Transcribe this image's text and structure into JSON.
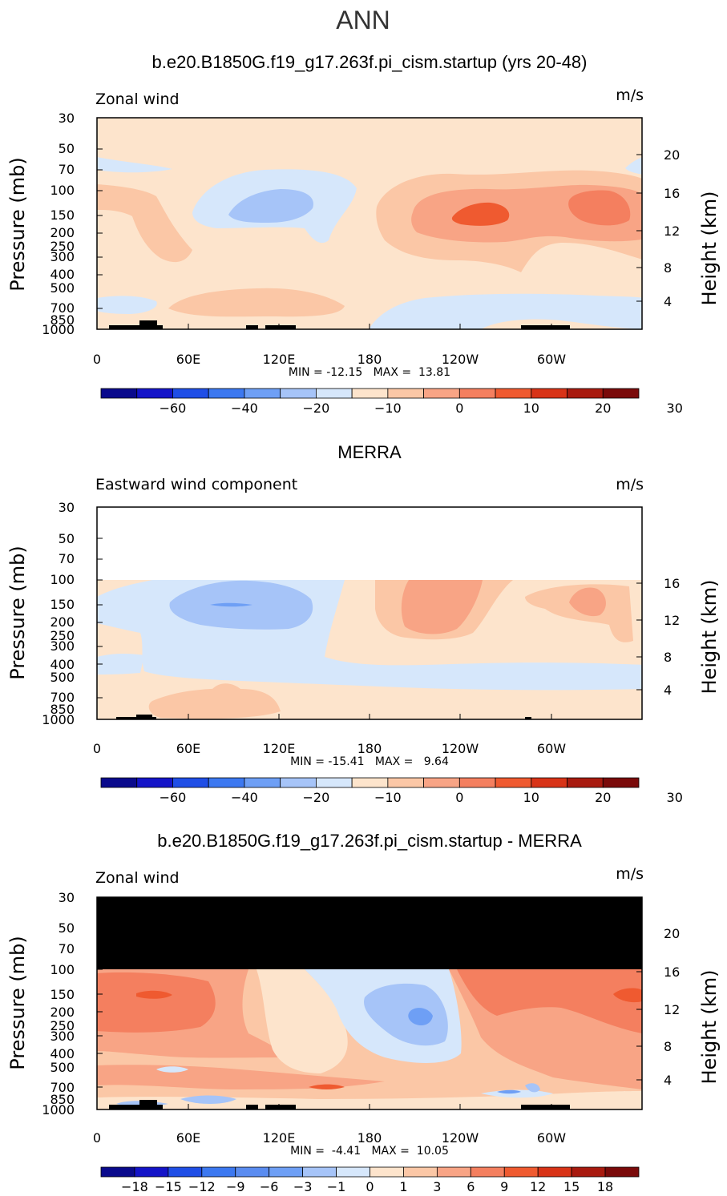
{
  "main_title": "ANN",
  "chart_data": [
    {
      "type": "contour",
      "title": "b.e20.B1850G.f19_g17.263f.pi_cism.startup (yrs 20-48)",
      "left_label": "Zonal wind",
      "units": "m/s",
      "ylabel": "Pressure (mb)",
      "y2label": "Height (km)",
      "xticks": [
        "0",
        "60E",
        "120E",
        "180",
        "120W",
        "60W"
      ],
      "yticks": [
        "30",
        "50",
        "70",
        "100",
        "150",
        "200",
        "250",
        "300",
        "400",
        "500",
        "700",
        "850",
        "1000"
      ],
      "y2ticks": [
        "20",
        "16",
        "12",
        "8",
        "4"
      ],
      "stats": "MIN = -12.15   MAX =  13.81",
      "min": -12.15,
      "max": 13.81,
      "colorbar_labels": [
        "-60",
        "-40",
        "-20",
        "-10",
        "0",
        "10",
        "20",
        "30"
      ],
      "colorbar_colors": [
        "#0a0a8c",
        "#1414c8",
        "#1f4ee6",
        "#3c78f0",
        "#6e9ff5",
        "#a6c4f8",
        "#d6e7fb",
        "#fde4cc",
        "#fbc7a6",
        "#f8a485",
        "#f47f5f",
        "#ef5a30",
        "#d83317",
        "#a81a0f",
        "#7a0a0a"
      ]
    },
    {
      "type": "contour",
      "title": "MERRA",
      "left_label": "Eastward wind component",
      "units": "m/s",
      "ylabel": "Pressure (mb)",
      "y2label": "Height (km)",
      "xticks": [
        "0",
        "60E",
        "120E",
        "180",
        "120W",
        "60W"
      ],
      "yticks": [
        "30",
        "50",
        "70",
        "100",
        "150",
        "200",
        "250",
        "300",
        "400",
        "500",
        "700",
        "850",
        "1000"
      ],
      "y2ticks": [
        "16",
        "12",
        "8",
        "4"
      ],
      "stats": "MIN = -15.41   MAX =   9.64",
      "min": -15.41,
      "max": 9.64,
      "colorbar_labels": [
        "-60",
        "-40",
        "-20",
        "-10",
        "0",
        "10",
        "20",
        "30"
      ],
      "colorbar_colors": [
        "#0a0a8c",
        "#1414c8",
        "#1f4ee6",
        "#3c78f0",
        "#6e9ff5",
        "#a6c4f8",
        "#d6e7fb",
        "#fde4cc",
        "#fbc7a6",
        "#f8a485",
        "#f47f5f",
        "#ef5a30",
        "#d83317",
        "#a81a0f",
        "#7a0a0a"
      ]
    },
    {
      "type": "contour",
      "title": "b.e20.B1850G.f19_g17.263f.pi_cism.startup - MERRA",
      "left_label": "Zonal wind",
      "units": "m/s",
      "ylabel": "Pressure (mb)",
      "y2label": "Height (km)",
      "xticks": [
        "0",
        "60E",
        "120E",
        "180",
        "120W",
        "60W"
      ],
      "yticks": [
        "30",
        "50",
        "70",
        "100",
        "150",
        "200",
        "250",
        "300",
        "400",
        "500",
        "700",
        "850",
        "1000"
      ],
      "y2ticks": [
        "20",
        "16",
        "12",
        "8",
        "4"
      ],
      "stats": "MIN =  -4.41   MAX =  10.05",
      "min": -4.41,
      "max": 10.05,
      "colorbar_labels": [
        "-18",
        "-15",
        "-12",
        "-9",
        "-6",
        "-3",
        "-1",
        "0",
        "1",
        "3",
        "6",
        "9",
        "12",
        "15",
        "18"
      ],
      "colorbar_colors": [
        "#0a0a8c",
        "#1414c8",
        "#1f4ee6",
        "#3c78f0",
        "#5a8cf0",
        "#6e9ff5",
        "#a6c4f8",
        "#d6e7fb",
        "#fde4cc",
        "#fbc7a6",
        "#f8a485",
        "#f47f5f",
        "#ef5a30",
        "#d83317",
        "#a81a0f",
        "#7a0a0a"
      ]
    }
  ]
}
